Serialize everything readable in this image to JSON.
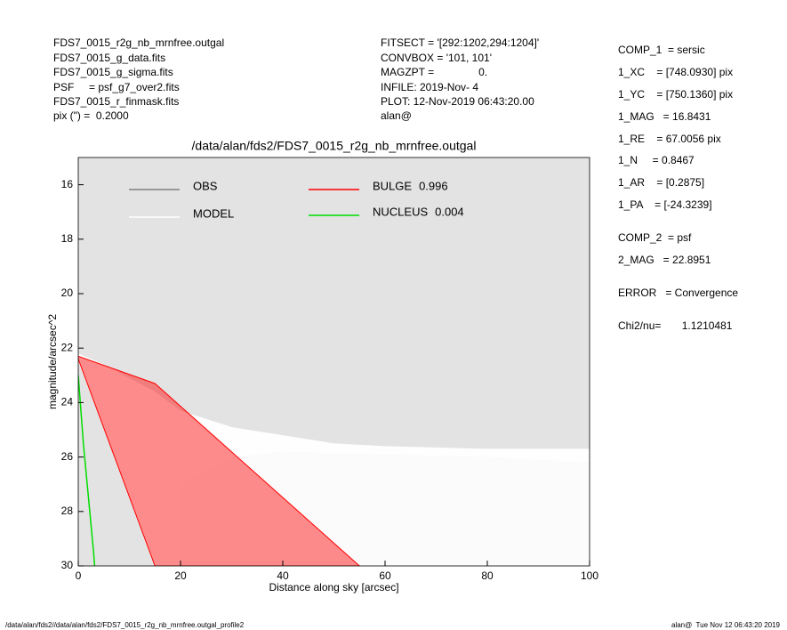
{
  "header": {
    "left": [
      "FDS7_0015_r2g_nb_mrnfree.outgal",
      "FDS7_0015_g_data.fits",
      "FDS7_0015_g_sigma.fits",
      "PSF     = psf_g7_over2.fits",
      "FDS7_0015_r_finmask.fits",
      "pix (\") =  0.2000"
    ],
    "middle": [
      "FITSECT = '[292:1202,294:1204]'",
      "CONVBOX = '101, 101'",
      "MAGZPT =               0.",
      "INFILE: 2019-Nov- 4",
      "PLOT: 12-Nov-2019 06:43:20.00",
      "alan@"
    ]
  },
  "panel": [
    "COMP_1  = sersic",
    "1_XC    = [748.0930] pix",
    "1_YC    = [750.1360] pix",
    "1_MAG   = 16.8431",
    "1_RE    = 67.0056 pix",
    "1_N     = 0.8467",
    "1_AR    = [0.2875]",
    "1_PA    = [-24.3239]",
    "COMP_2  = psf",
    "2_MAG   = 22.8951",
    "ERROR   = Convergence",
    "Chi2/nu=       1.1210481"
  ],
  "footer": {
    "left": "/data/alan/fds2//data/alan/fds2/FDS7_0015_r2g_nb_mrnfree.outgal_profile2",
    "right": "alan@  Tue Nov 12 06:43:20 2019"
  },
  "chart_data": {
    "type": "line",
    "title": "/data/alan/fds2/FDS7_0015_r2g_nb_mrnfree.outgal",
    "x_label": "Distance along sky [arcsec]",
    "y_label": "magnitude/arcsec^2",
    "xlim": [
      0,
      100
    ],
    "xticks": [
      0,
      20,
      40,
      60,
      80,
      100
    ],
    "ylim": [
      30,
      15
    ],
    "yticks": [
      16,
      18,
      20,
      22,
      24,
      26,
      28,
      30
    ],
    "series": [
      {
        "name": "OBS",
        "color": "#808080",
        "x": [
          20,
          30,
          40,
          60,
          80,
          100
        ],
        "values": [
          27,
          26,
          25.8,
          25.9,
          26,
          26.2
        ],
        "lower": [
          30,
          30,
          30,
          30,
          30,
          30
        ]
      },
      {
        "name": "MODEL",
        "color": "#ffffff",
        "x": [
          0,
          5,
          10,
          15,
          20,
          30,
          40,
          50,
          60,
          80,
          100
        ],
        "values": [
          22.2,
          22.6,
          23.1,
          23.6,
          24.3,
          24.9,
          25.2,
          25.5,
          25.6,
          25.7,
          25.7
        ],
        "lower": [
          22.5,
          24.9,
          27.4,
          30,
          30,
          30,
          30,
          30,
          30,
          30,
          30
        ]
      },
      {
        "name": "BULGE",
        "fraction": 0.996,
        "color": "#ff0000",
        "x": [
          0,
          15,
          55
        ],
        "values": [
          22.3,
          23.3,
          30
        ],
        "lower": [
          22.4,
          30,
          30
        ]
      },
      {
        "name": "NUCLEUS",
        "fraction": 0.004,
        "color": "#00dd00",
        "x": [
          0,
          1,
          2,
          3,
          3.2
        ],
        "values": [
          23,
          25.5,
          27.5,
          29.5,
          30
        ]
      }
    ]
  }
}
